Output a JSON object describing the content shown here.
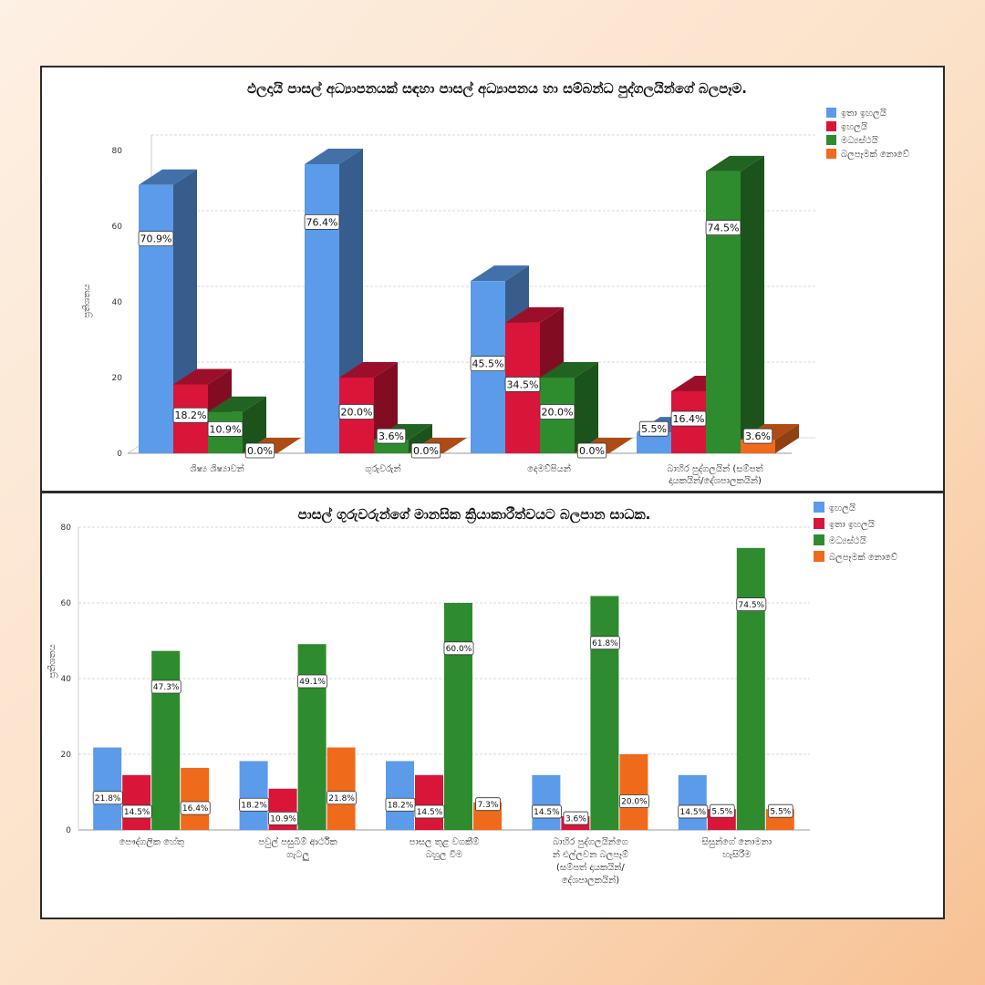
{
  "chart_data": [
    {
      "type": "bar",
      "variant": "3d",
      "title": "ඵලදායි පාසල් අධ්‍යාපනයක් සඳහා පාසල් අධ්‍යාපනය හා සම්බන්ධ පුද්ගලයින්ගේ බලපෑම.",
      "ylabel": "ප්‍රතිශතය",
      "xlabel": "",
      "ylim": [
        0,
        80
      ],
      "yticks": [
        0,
        20,
        40,
        60,
        80
      ],
      "grid": true,
      "legend_position": "top-right",
      "categories": [
        [
          "ශිෂ්‍ය ශිෂ්‍යාවන්"
        ],
        [
          "ගුරුවරුන්"
        ],
        [
          "දෙමව්පියන්"
        ],
        [
          "බාහිර පුද්ගලයින් (සම්පත්",
          "දායකයින්/දේශපාලකයින්)"
        ]
      ],
      "series": [
        {
          "name": "ඉතා ඉහලයි",
          "color": "#5b9bea",
          "values": [
            70.9,
            76.4,
            45.5,
            5.5
          ],
          "labels": [
            "70.9%",
            "76.4%",
            "45.5%",
            "5.5%"
          ]
        },
        {
          "name": "ඉහලයි",
          "color": "#d9153a",
          "values": [
            18.2,
            20.0,
            34.5,
            16.4
          ],
          "labels": [
            "18.2%",
            "20.0%",
            "34.5%",
            "16.4%"
          ]
        },
        {
          "name": "මධ්‍යස්ථයි",
          "color": "#2e8b2e",
          "values": [
            10.9,
            3.6,
            20.0,
            74.5
          ],
          "labels": [
            "10.9%",
            "3.6%",
            "20.0%",
            "74.5%"
          ]
        },
        {
          "name": "බලපෑමක් නොවේ",
          "color": "#f06a1c",
          "values": [
            0.0,
            0.0,
            0.0,
            3.6
          ],
          "labels": [
            "0.0%",
            "0.0%",
            "0.0%",
            "3.6%"
          ]
        }
      ]
    },
    {
      "type": "bar",
      "variant": "flat",
      "title": "පාසල් ගුරුවරුන්ගේ මානසික ක්‍රියාකාරීත්වයට බලපාන සාධක.",
      "ylabel": "ප්‍රතිශතය",
      "xlabel": "",
      "ylim": [
        0,
        80
      ],
      "yticks": [
        0,
        20,
        40,
        60,
        80
      ],
      "grid": true,
      "legend_position": "top-right",
      "categories": [
        [
          "පෞද්ගලික හේතු"
        ],
        [
          "පවුල් පසුබිම් ආර්ථික",
          "ගැටලු"
        ],
        [
          "පාසල තුළ වගකීම්",
          "බහුල වීම"
        ],
        [
          "බාහිර පුද්ගලයින්ගෙ",
          "න් එල්ලවන බලපෑම්",
          "(සම්පත් දායකයින්/",
          "දේශපාලකයින්)"
        ],
        [
          "සිසුන්ගේ නොමනා",
          "හැසිරීම"
        ]
      ],
      "series": [
        {
          "name": "ඉහලයි",
          "color": "#5b9bea",
          "values": [
            21.8,
            18.2,
            18.2,
            14.5,
            14.5
          ],
          "labels": [
            "21.8%",
            "18.2%",
            "18.2%",
            "14.5%",
            "14.5%"
          ]
        },
        {
          "name": "ඉතා ඉහලයි",
          "color": "#d9153a",
          "values": [
            14.5,
            10.9,
            14.5,
            3.6,
            5.5
          ],
          "labels": [
            "14.5%",
            "10.9%",
            "14.5%",
            "3.6%",
            "5.5%"
          ]
        },
        {
          "name": "මධ්‍යස්ථයි",
          "color": "#2e8b2e",
          "values": [
            47.3,
            49.1,
            60.0,
            61.8,
            74.5
          ],
          "labels": [
            "47.3%",
            "49.1%",
            "60.0%",
            "61.8%",
            "74.5%"
          ]
        },
        {
          "name": "බලපෑමක් නොවේ",
          "color": "#f06a1c",
          "values": [
            16.4,
            21.8,
            7.3,
            20.0,
            5.5
          ],
          "labels": [
            "16.4%",
            "21.8%",
            "7.3%",
            "20.0%",
            "5.5%"
          ]
        }
      ]
    }
  ]
}
